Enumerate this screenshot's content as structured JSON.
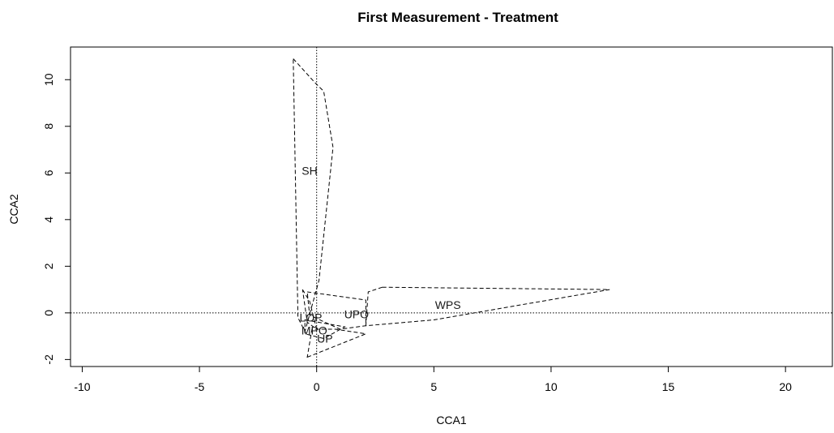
{
  "chart_data": {
    "type": "scatter",
    "title": "First Measurement - Treatment",
    "xlabel": "CCA1",
    "ylabel": "CCA2",
    "xlim": [
      -10.5,
      22
    ],
    "ylim": [
      -2.3,
      11.4
    ],
    "x_ticks": [
      -10,
      -5,
      0,
      5,
      10,
      15,
      20
    ],
    "y_ticks": [
      -2,
      0,
      2,
      4,
      6,
      8,
      10
    ],
    "grid": false,
    "reference_lines": {
      "x": 0,
      "y": 0,
      "style": "dotted"
    },
    "group_labels": [
      {
        "text": "SH",
        "x": -0.3,
        "y": 6.1
      },
      {
        "text": "WPS",
        "x": 5.6,
        "y": 0.35
      },
      {
        "text": "UPO",
        "x": 1.7,
        "y": -0.05
      },
      {
        "text": "LOP",
        "x": -0.25,
        "y": -0.2
      },
      {
        "text": "MPO",
        "x": -0.1,
        "y": -0.75
      },
      {
        "text": "UP",
        "x": 0.35,
        "y": -1.1
      }
    ],
    "hulls": [
      {
        "group": "SH",
        "points": [
          [
            -1.0,
            10.9
          ],
          [
            -0.1,
            9.9
          ],
          [
            0.3,
            9.5
          ],
          [
            0.7,
            7.1
          ],
          [
            0.1,
            1.4
          ],
          [
            -0.5,
            -0.8
          ],
          [
            -0.8,
            -0.2
          ]
        ]
      },
      {
        "group": "WPS",
        "points": [
          [
            2.8,
            1.1
          ],
          [
            12.5,
            1.0
          ],
          [
            5.0,
            -0.3
          ],
          [
            2.1,
            -0.55
          ],
          [
            2.2,
            0.9
          ]
        ]
      },
      {
        "group": "UPO",
        "points": [
          [
            -0.4,
            0.9
          ],
          [
            2.1,
            0.55
          ],
          [
            2.1,
            -0.55
          ],
          [
            1.0,
            -0.7
          ],
          [
            -0.3,
            -0.1
          ]
        ]
      },
      {
        "group": "LOP",
        "points": [
          [
            -0.6,
            1.0
          ],
          [
            -0.3,
            0.5
          ],
          [
            0.0,
            -0.7
          ],
          [
            -0.4,
            -0.4
          ]
        ]
      },
      {
        "group": "MPO",
        "points": [
          [
            -0.5,
            -0.3
          ],
          [
            1.2,
            -0.6
          ],
          [
            0.3,
            -1.1
          ],
          [
            -0.5,
            -0.9
          ]
        ]
      },
      {
        "group": "UP",
        "points": [
          [
            -0.4,
            -1.9
          ],
          [
            2.1,
            -0.9
          ],
          [
            0.8,
            -0.7
          ],
          [
            -0.2,
            -0.7
          ]
        ]
      }
    ]
  }
}
